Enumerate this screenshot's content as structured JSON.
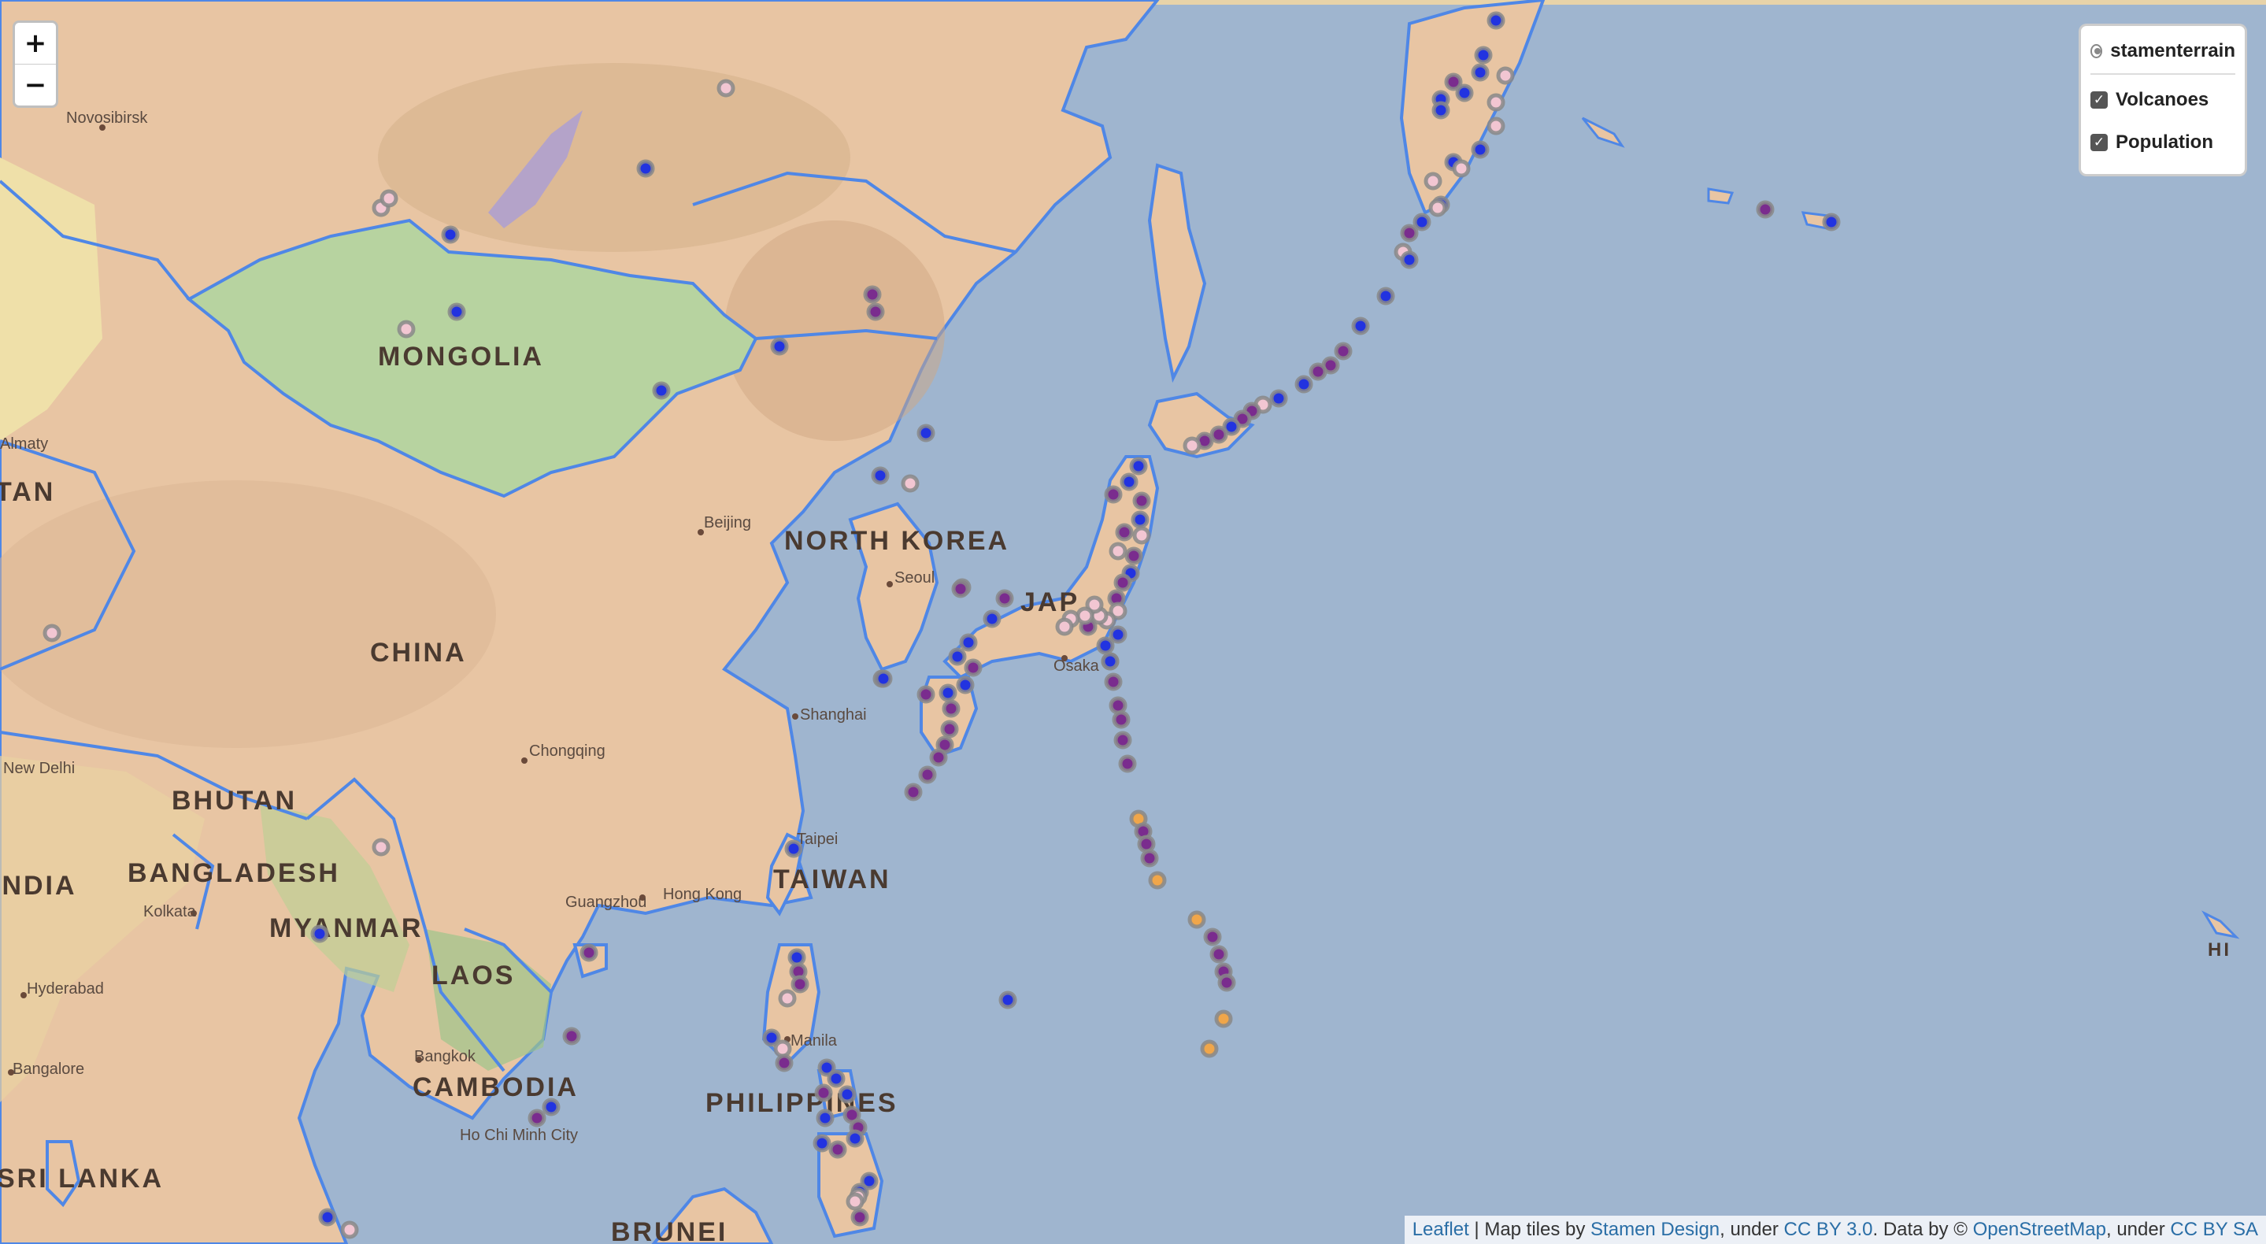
{
  "zoom": {
    "in_label": "+",
    "out_label": "−"
  },
  "layers_control": {
    "base_layer": "stamenterrain",
    "overlays": [
      {
        "label": "Volcanoes",
        "checked": true
      },
      {
        "label": "Population",
        "checked": true
      }
    ]
  },
  "attribution": {
    "leaflet": "Leaflet",
    "sep1": " | Map tiles by ",
    "stamen": "Stamen Design",
    "sep2": ", under ",
    "ccby": "CC BY 3.0",
    "sep3": ". Data by © ",
    "osm": "OpenStreetMap",
    "sep4": ", under ",
    "ccbysa": "CC BY SA"
  },
  "colors": {
    "ocean": "#9fb5cf",
    "land": "#e8c5a3",
    "mongolia": "#b7d3a0",
    "border": "#4f87e6",
    "marker_blue": "#2233e0",
    "marker_purple": "#7a2c8e",
    "marker_pink": "#f2c6d2",
    "marker_orange": "#f0a64a",
    "marker_stroke": "#888888"
  },
  "countries": [
    "MONGOLIA",
    "NORTH KOREA",
    "CHINA",
    "BHUTAN",
    "BANGLADESH",
    "INDIA",
    "MYANMAR",
    "LAOS",
    "TAIWAN",
    "CAMBODIA",
    "PHILIPPINES",
    "SRI LANKA",
    "BRUNEI",
    "TAN",
    "JAP",
    "HI"
  ],
  "cities": [
    "Novosibirsk",
    "Almaty",
    "Beijing",
    "Seoul",
    "Osaka",
    "Shanghai",
    "Chongqing",
    "New Delhi",
    "Taipei",
    "Guangzhou",
    "Hong Kong",
    "Kolkata",
    "Hyderabad",
    "Bangalore",
    "Bangkok",
    "Manila",
    "Ho Chi Minh City"
  ],
  "markers": {
    "blue_count": 64,
    "purple_count": 60,
    "pink_count": 30,
    "orange_count": 6
  }
}
